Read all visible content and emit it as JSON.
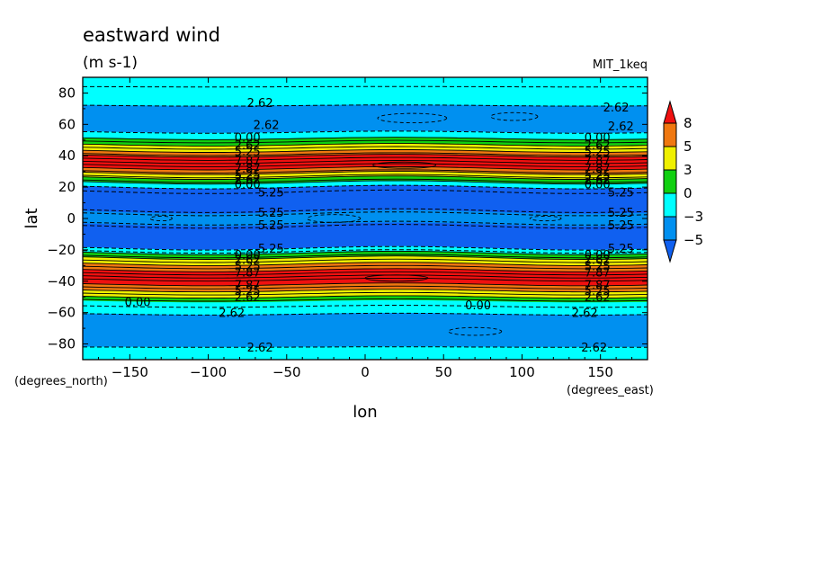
{
  "chart_data": {
    "type": "heatmap",
    "title": "eastward wind",
    "subtitle": "(m s-1)",
    "dataset_label": "MIT_1keq",
    "xlabel": "lon",
    "ylabel": "lat",
    "x_units": "(degrees_east)",
    "y_units": "(degrees_north)",
    "xlim": [
      -180,
      180
    ],
    "ylim": [
      -90,
      90
    ],
    "x_ticks": [
      -150,
      -100,
      -50,
      0,
      50,
      100,
      150
    ],
    "y_ticks": [
      80,
      60,
      40,
      20,
      0,
      -20,
      -40,
      -60,
      -80
    ],
    "x_tick_labels": [
      "−150",
      "−100",
      "−50",
      "0",
      "50",
      "100",
      "150"
    ],
    "y_tick_labels": [
      "80",
      "60",
      "40",
      "20",
      "0",
      "−20",
      "−40",
      "−60",
      "−80"
    ],
    "colorbar": {
      "levels": [
        8,
        5,
        3,
        0,
        -3,
        -5
      ],
      "labels": [
        "8",
        "5",
        "3",
        "0",
        "−3",
        "−5"
      ],
      "colors": [
        "#f01010",
        "#f07810",
        "#f0f000",
        "#10d010",
        "#00ffff",
        "#0090f0",
        "#1060f0"
      ]
    },
    "zonal_bands": [
      {
        "lat_from": 90,
        "lat_to": 83,
        "value_class": "-3..0"
      },
      {
        "lat_from": 83,
        "lat_to": 72,
        "value_class": "-3..0"
      },
      {
        "lat_from": 72,
        "lat_to": 55,
        "value_class": "-5..-3"
      },
      {
        "lat_from": 55,
        "lat_to": 51,
        "value_class": "-3..0"
      },
      {
        "lat_from": 51,
        "lat_to": 47,
        "value_class": "0..3"
      },
      {
        "lat_from": 47,
        "lat_to": 43,
        "value_class": "3..5"
      },
      {
        "lat_from": 43,
        "lat_to": 40,
        "value_class": "5..8"
      },
      {
        "lat_from": 40,
        "lat_to": 32,
        "value_class": ">8"
      },
      {
        "lat_from": 32,
        "lat_to": 29,
        "value_class": "5..8"
      },
      {
        "lat_from": 29,
        "lat_to": 26,
        "value_class": "3..5"
      },
      {
        "lat_from": 26,
        "lat_to": 23,
        "value_class": "0..3"
      },
      {
        "lat_from": 23,
        "lat_to": 20,
        "value_class": "-3..0"
      },
      {
        "lat_from": 20,
        "lat_to": 4,
        "value_class": "< -5"
      },
      {
        "lat_from": 4,
        "lat_to": -4,
        "value_class": "-5..-3"
      },
      {
        "lat_from": -4,
        "lat_to": -19,
        "value_class": "< -5"
      },
      {
        "lat_from": -19,
        "lat_to": -22,
        "value_class": "-3..0"
      },
      {
        "lat_from": -22,
        "lat_to": -25,
        "value_class": "0..3"
      },
      {
        "lat_from": -25,
        "lat_to": -29,
        "value_class": "3..5"
      },
      {
        "lat_from": -29,
        "lat_to": -33,
        "value_class": "5..8"
      },
      {
        "lat_from": -33,
        "lat_to": -42,
        "value_class": ">8"
      },
      {
        "lat_from": -42,
        "lat_to": -46,
        "value_class": "5..8"
      },
      {
        "lat_from": -46,
        "lat_to": -50,
        "value_class": "3..5"
      },
      {
        "lat_from": -50,
        "lat_to": -53,
        "value_class": "0..3"
      },
      {
        "lat_from": -53,
        "lat_to": -61,
        "value_class": "-3..0"
      },
      {
        "lat_from": -61,
        "lat_to": -82,
        "value_class": "-5..-3"
      },
      {
        "lat_from": -82,
        "lat_to": -90,
        "value_class": "-3..0"
      }
    ],
    "contour_labels": [
      {
        "text": "2.62",
        "lon": -67,
        "lat": 74
      },
      {
        "text": "2.62",
        "lon": 160,
        "lat": 71
      },
      {
        "text": "2.62",
        "lon": -63,
        "lat": 60
      },
      {
        "text": "2.62",
        "lon": 163,
        "lat": 59
      },
      {
        "text": "0.00",
        "lon": -75,
        "lat": 52
      },
      {
        "text": "0.00",
        "lon": 148,
        "lat": 52
      },
      {
        "text": "2.62",
        "lon": -75,
        "lat": 47
      },
      {
        "text": "2.62",
        "lon": 148,
        "lat": 47
      },
      {
        "text": "5.25",
        "lon": -75,
        "lat": 43
      },
      {
        "text": "5.25",
        "lon": 148,
        "lat": 43
      },
      {
        "text": "7.87",
        "lon": -75,
        "lat": 37
      },
      {
        "text": "7.87",
        "lon": 148,
        "lat": 37
      },
      {
        "text": "7.87",
        "lon": -75,
        "lat": 32
      },
      {
        "text": "7.87",
        "lon": 148,
        "lat": 32
      },
      {
        "text": "5.25",
        "lon": -75,
        "lat": 28
      },
      {
        "text": "5.25",
        "lon": 148,
        "lat": 28
      },
      {
        "text": "2.62",
        "lon": -75,
        "lat": 25
      },
      {
        "text": "2.62",
        "lon": 148,
        "lat": 25
      },
      {
        "text": "0.00",
        "lon": -75,
        "lat": 22
      },
      {
        "text": "0.00",
        "lon": 148,
        "lat": 22
      },
      {
        "text": "5.25",
        "lon": -60,
        "lat": 17
      },
      {
        "text": "5.25",
        "lon": 163,
        "lat": 17
      },
      {
        "text": "5.25",
        "lon": -60,
        "lat": 4
      },
      {
        "text": "5.25",
        "lon": 163,
        "lat": 4
      },
      {
        "text": "5.25",
        "lon": -60,
        "lat": -4
      },
      {
        "text": "5.25",
        "lon": 163,
        "lat": -4
      },
      {
        "text": "5.25",
        "lon": -60,
        "lat": -19
      },
      {
        "text": "5.25",
        "lon": 163,
        "lat": -19
      },
      {
        "text": "0.00",
        "lon": -75,
        "lat": -23
      },
      {
        "text": "0.00",
        "lon": 148,
        "lat": -23
      },
      {
        "text": "2.62",
        "lon": -75,
        "lat": -26
      },
      {
        "text": "2.62",
        "lon": 148,
        "lat": -26
      },
      {
        "text": "5.25",
        "lon": -75,
        "lat": -30
      },
      {
        "text": "5.25",
        "lon": 148,
        "lat": -30
      },
      {
        "text": "7.87",
        "lon": -75,
        "lat": -34
      },
      {
        "text": "7.87",
        "lon": 148,
        "lat": -34
      },
      {
        "text": "7.87",
        "lon": -75,
        "lat": -42
      },
      {
        "text": "7.87",
        "lon": 148,
        "lat": -42
      },
      {
        "text": "5.25",
        "lon": -75,
        "lat": -46
      },
      {
        "text": "5.25",
        "lon": 148,
        "lat": -46
      },
      {
        "text": "2.62",
        "lon": -75,
        "lat": -50
      },
      {
        "text": "2.62",
        "lon": 148,
        "lat": -50
      },
      {
        "text": "0.00",
        "lon": -145,
        "lat": -53
      },
      {
        "text": "0.00",
        "lon": 72,
        "lat": -55
      },
      {
        "text": "2.62",
        "lon": -85,
        "lat": -60
      },
      {
        "text": "2.62",
        "lon": 140,
        "lat": -60
      },
      {
        "text": "2.62",
        "lon": -67,
        "lat": -82
      },
      {
        "text": "2.62",
        "lon": 146,
        "lat": -82
      }
    ],
    "dashed_contour_lats": [
      84,
      72,
      55,
      20,
      17,
      5,
      3,
      -3,
      -5,
      -19,
      -21,
      -56,
      -61,
      -82
    ],
    "solid_contour_lats": [
      51,
      49,
      47,
      45,
      43,
      41,
      40,
      38,
      36,
      34,
      32,
      30,
      29,
      27,
      26,
      24,
      23,
      -22,
      -24,
      -25,
      -27,
      -29,
      -31,
      -33,
      -35,
      -37,
      -39,
      -42,
      -44,
      -46,
      -48,
      -50,
      -52
    ],
    "closed_contours": [
      {
        "lon": 30,
        "lat": 64,
        "w": 44,
        "h": 6,
        "dashed": true
      },
      {
        "lon": 95,
        "lat": 65,
        "w": 30,
        "h": 5,
        "dashed": true
      },
      {
        "lon": 25,
        "lat": 34,
        "w": 40,
        "h": 4,
        "dashed": false
      },
      {
        "lon": -130,
        "lat": 0,
        "w": 14,
        "h": 3,
        "dashed": true
      },
      {
        "lon": -20,
        "lat": 0,
        "w": 34,
        "h": 5,
        "dashed": true
      },
      {
        "lon": 115,
        "lat": 0,
        "w": 20,
        "h": 3,
        "dashed": true
      },
      {
        "lon": 20,
        "lat": -38,
        "w": 40,
        "h": 4,
        "dashed": false
      },
      {
        "lon": 70,
        "lat": -72,
        "w": 34,
        "h": 5,
        "dashed": true
      }
    ]
  }
}
